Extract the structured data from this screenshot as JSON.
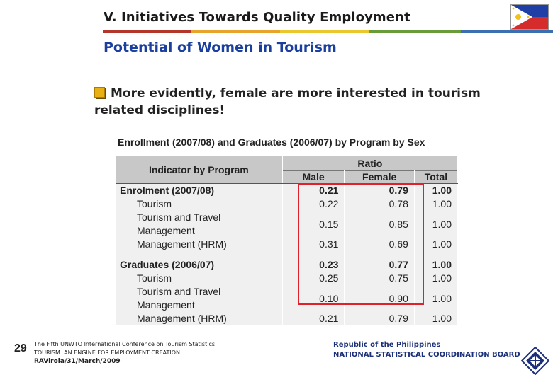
{
  "header": {
    "title": "V. Initiatives Towards Quality Employment",
    "color_bar": [
      "#b3362a",
      "#e8a32a",
      "#e9c72e",
      "#6a9b3a",
      "#3a6fb0",
      "#8a4fa0"
    ]
  },
  "subtitle": "Potential of Women in Tourism",
  "bullet": {
    "text": "More evidently, female are more interested in tourism related disciplines!"
  },
  "table": {
    "caption": "Enrollment (2007/08) and Graduates (2006/07) by Program by Sex",
    "header_indicator": "Indicator by Program",
    "header_ratio": "Ratio",
    "col_male": "Male",
    "col_female": "Female",
    "col_total": "Total",
    "rows": [
      {
        "label": "Enrolment (2007/08)",
        "male": "0.21",
        "female": "0.79",
        "total": "1.00"
      },
      {
        "label": "Tourism",
        "male": "0.22",
        "female": "0.78",
        "total": "1.00"
      },
      {
        "label": "Tourism and Travel Management",
        "male": "0.15",
        "female": "0.85",
        "total": "1.00"
      },
      {
        "label": "Management (HRM)",
        "male": "0.31",
        "female": "0.69",
        "total": "1.00"
      },
      {
        "label": "Graduates (2006/07)",
        "male": "0.23",
        "female": "0.77",
        "total": "1.00"
      },
      {
        "label": "Tourism",
        "male": "0.25",
        "female": "0.75",
        "total": "1.00"
      },
      {
        "label": "Tourism and Travel Management",
        "male": "0.10",
        "female": "0.90",
        "total": "1.00"
      },
      {
        "label": "Management (HRM)",
        "male": "0.21",
        "female": "0.79",
        "total": "1.00"
      }
    ]
  },
  "footer": {
    "page_number": "29",
    "conference_line1": "The Fifth UNWTO International Conference on Tourism Statistics",
    "conference_line2": "TOURISM: AN ENGINE FOR EMPLOYMENT CREATION",
    "conference_line3": "RAVirola/31/March/2009",
    "org_line1": "Republic of the Philippines",
    "org_line2": "NATIONAL STATISTICAL COORDINATION BOARD"
  }
}
